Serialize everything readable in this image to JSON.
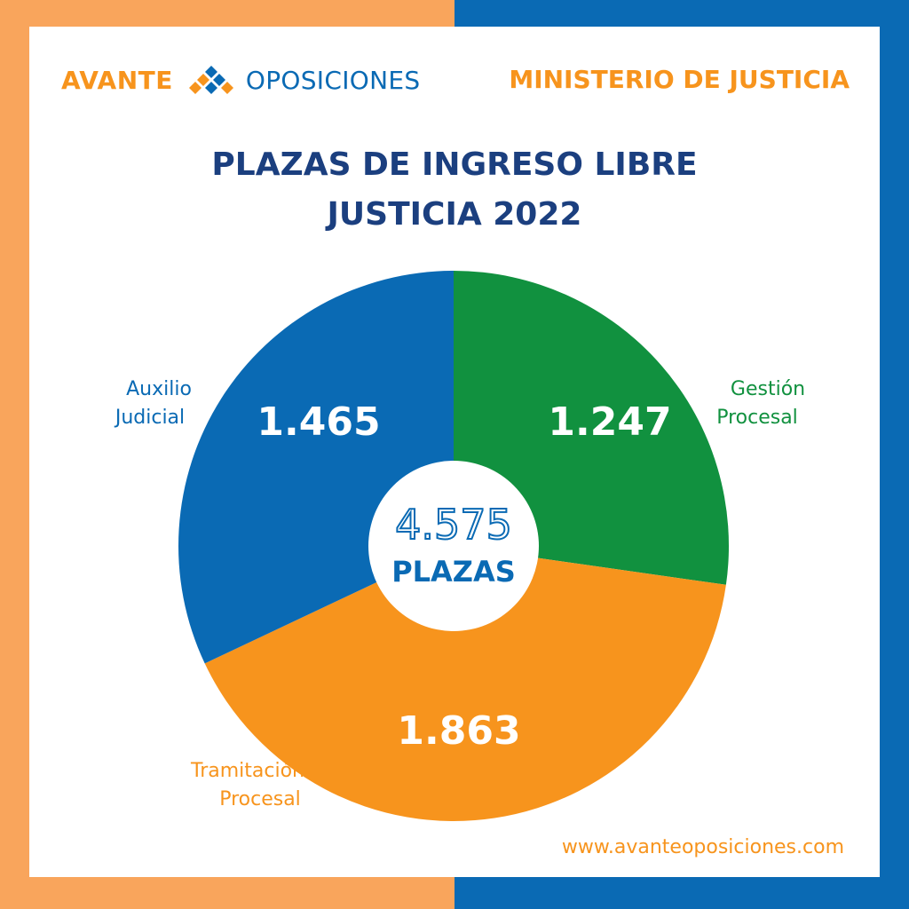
{
  "colors": {
    "orange": "#F7941D",
    "blue": "#0A6AB4",
    "navy": "#1B3F7F",
    "green": "#11913F",
    "white": "#FFFFFF",
    "frame_left": "#F9A55C",
    "frame_right": "#0A6AB4"
  },
  "header": {
    "logo_left": "AVANTE",
    "logo_right": "OPOSICIONES",
    "logo_icon": "diamond-grid-icon",
    "ministry": "MINISTERIO DE JUSTICIA"
  },
  "chart_data": {
    "type": "pie",
    "variant": "donut",
    "title": [
      "PLAZAS DE INGRESO LIBRE",
      "JUSTICIA 2022"
    ],
    "total": {
      "value": "4.575",
      "label": "PLAZAS"
    },
    "slices": [
      {
        "label_lines": [
          "Gestión",
          "Procesal"
        ],
        "value": 1247,
        "display": "1.247",
        "color": "#11913F"
      },
      {
        "label_lines": [
          "Tramitación",
          "Procesal"
        ],
        "value": 1863,
        "display": "1.863",
        "color": "#F7941D"
      },
      {
        "label_lines": [
          "Auxilio",
          "Judicial"
        ],
        "value": 1465,
        "display": "1.465",
        "color": "#0A6AB4"
      }
    ]
  },
  "footer": {
    "url": "www.avanteoposiciones.com"
  }
}
